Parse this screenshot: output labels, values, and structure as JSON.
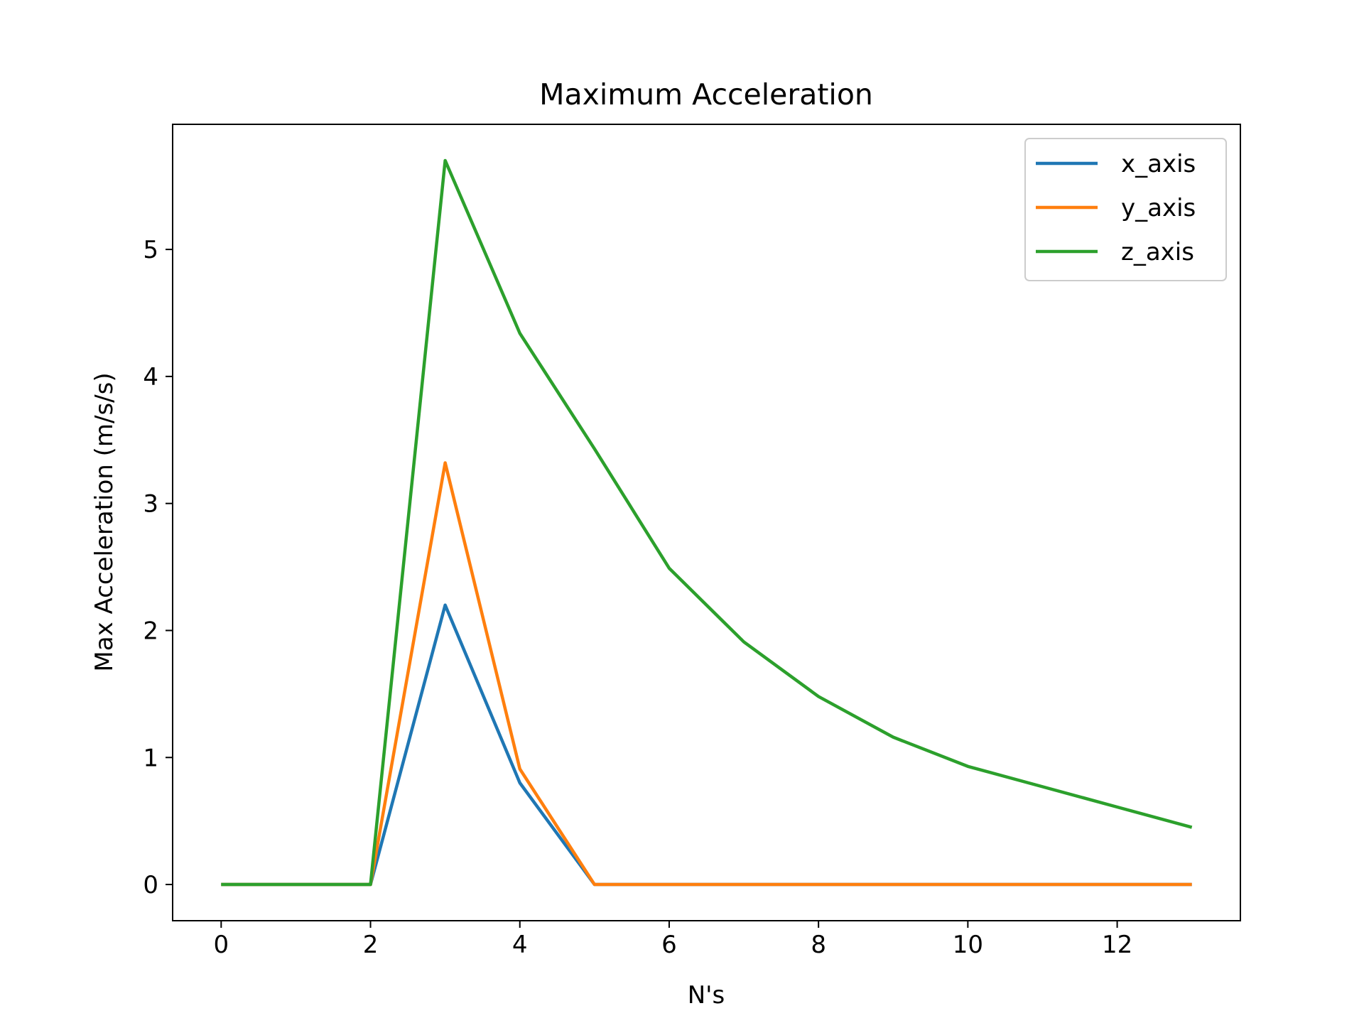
{
  "chart_data": {
    "type": "line",
    "title": "Maximum Acceleration",
    "xlabel": "N's",
    "ylabel": "Max Acceleration (m/s/s)",
    "xlim": [
      -0.65,
      13.65
    ],
    "ylim": [
      -0.285,
      5.985
    ],
    "xticks": [
      0,
      2,
      4,
      6,
      8,
      10,
      12
    ],
    "yticks": [
      0,
      1,
      2,
      3,
      4,
      5
    ],
    "grid": false,
    "legend_position": "top-right",
    "x": [
      0,
      1,
      2,
      3,
      4,
      5,
      6,
      7,
      8,
      9,
      10,
      11,
      12,
      13
    ],
    "series": [
      {
        "name": "x_axis",
        "color": "#1f77b4",
        "values": [
          0,
          0,
          0,
          2.2,
          0.8,
          0,
          0,
          0,
          0,
          0,
          0,
          0,
          0,
          0
        ]
      },
      {
        "name": "y_axis",
        "color": "#ff7f0e",
        "values": [
          0,
          0,
          0,
          3.32,
          0.91,
          0,
          0,
          0,
          0,
          0,
          0,
          0,
          0,
          0
        ]
      },
      {
        "name": "z_axis",
        "color": "#2ca02c",
        "values": [
          0,
          0,
          0,
          5.7,
          4.34,
          3.43,
          2.49,
          1.91,
          1.48,
          1.16,
          0.93,
          0.77,
          0.61,
          0.45
        ]
      }
    ]
  }
}
